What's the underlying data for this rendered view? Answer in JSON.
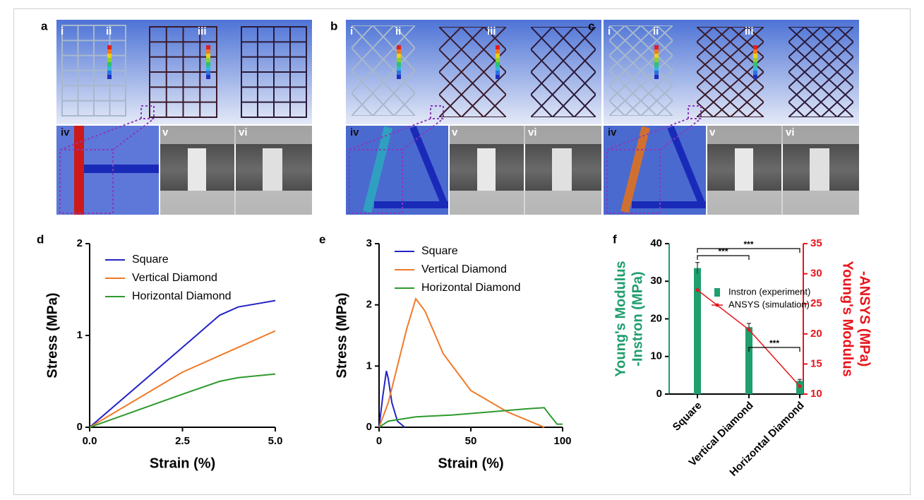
{
  "panels": [
    {
      "label": "a",
      "sublabels": [
        "i",
        "ii",
        "iii",
        "iv",
        "v",
        "vi"
      ]
    },
    {
      "label": "b",
      "sublabels": [
        "i",
        "ii",
        "iii",
        "iv",
        "v",
        "vi"
      ]
    },
    {
      "label": "c",
      "sublabels": [
        "i",
        "ii",
        "iii",
        "iv",
        "v",
        "vi"
      ]
    }
  ],
  "chart_data": [
    {
      "type": "line",
      "label": "d",
      "xlabel": "Strain (%)",
      "ylabel": [
        "Stress (MPa)"
      ],
      "x": [
        0,
        2.5,
        3.5,
        4,
        5
      ],
      "xlim": [
        0,
        5
      ],
      "xticks": [
        {
          "value": 0,
          "label": "0.0"
        },
        {
          "value": 2.5,
          "label": "2.5"
        },
        {
          "value": 5,
          "label": "5.0"
        }
      ],
      "ylim": [
        0,
        2
      ],
      "yticks": [
        0,
        1,
        2
      ],
      "series": [
        {
          "name": "Square",
          "color": "#2323c8",
          "values": [
            0,
            0.87,
            1.22,
            1.31,
            1.38
          ]
        },
        {
          "name": "Vertical Diamond",
          "color": "#f07a2a",
          "values": [
            0,
            0.6,
            0.78,
            0.87,
            1.05
          ]
        },
        {
          "name": "Horizontal Diamond",
          "color": "#2e9a2e",
          "values": [
            0,
            0.36,
            0.5,
            0.54,
            0.58
          ]
        }
      ]
    },
    {
      "type": "line",
      "label": "e",
      "xlabel": "Strain (%)",
      "ylabel": [
        "Stress (MPa)"
      ],
      "xlim": [
        0,
        100
      ],
      "xticks": [
        0,
        50,
        100
      ],
      "ylim": [
        0,
        3
      ],
      "yticks": [
        0,
        1,
        2,
        3
      ],
      "series": [
        {
          "name": "Square",
          "color": "#2323c8",
          "x": [
            0,
            2,
            4,
            5,
            7,
            10,
            14
          ],
          "values": [
            0,
            0.5,
            0.92,
            0.8,
            0.4,
            0.1,
            0
          ]
        },
        {
          "name": "Vertical Diamond",
          "color": "#f07a2a",
          "x": [
            0,
            5,
            10,
            15,
            20,
            25,
            35,
            50,
            70,
            90
          ],
          "values": [
            0,
            0.4,
            1.0,
            1.6,
            2.1,
            1.9,
            1.2,
            0.6,
            0.25,
            0
          ]
        },
        {
          "name": "Horizontal Diamond",
          "color": "#2e9a2e",
          "x": [
            0,
            5,
            20,
            40,
            60,
            80,
            90,
            93,
            97,
            100
          ],
          "values": [
            0,
            0.1,
            0.17,
            0.2,
            0.25,
            0.3,
            0.32,
            0.2,
            0.05,
            0.05
          ]
        }
      ]
    },
    {
      "type": "bar",
      "label": "f",
      "ylabel": [
        "Young's Modulus",
        "-Instron (MPa)"
      ],
      "y2label": [
        "Young's Modulus",
        "-ANSYS (MPa)"
      ],
      "categories": [
        "Square",
        "Vertical Diamond",
        "Horizontal Diamond"
      ],
      "ylim": [
        0,
        40
      ],
      "yticks": [
        0,
        10,
        20,
        30,
        40
      ],
      "y2lim": [
        10,
        35
      ],
      "y2ticks": [
        10,
        15,
        20,
        25,
        30,
        35
      ],
      "series": [
        {
          "name": "Instron (experiment)",
          "color": "#1f9e6e",
          "values": [
            33.5,
            17.8,
            3.5
          ],
          "errors": [
            1.5,
            1.0,
            0.4
          ]
        },
        {
          "name": "ANSYS (simulation)",
          "color": "#e8141c",
          "axis": "y2",
          "values": [
            27.3,
            20.7,
            11.3
          ]
        }
      ],
      "significance": [
        {
          "label": "***",
          "pair": [
            0,
            1
          ]
        },
        {
          "label": "***",
          "pair": [
            0,
            2
          ]
        },
        {
          "label": "***",
          "pair": [
            1,
            2
          ]
        }
      ]
    }
  ]
}
